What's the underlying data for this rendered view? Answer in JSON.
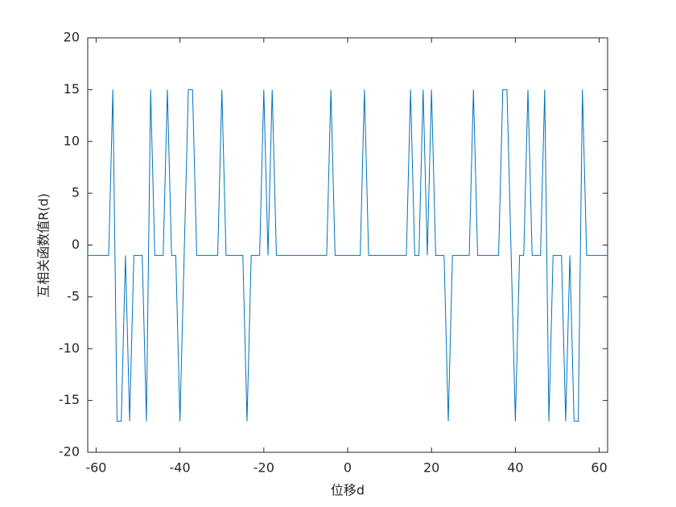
{
  "chart_data": {
    "type": "line",
    "x_label": "位移d",
    "y_label": "互相关函数值R(d)",
    "x": [
      -62,
      -61,
      -60,
      -59,
      -58,
      -57,
      -56,
      -55,
      -54,
      -53,
      -52,
      -51,
      -50,
      -49,
      -48,
      -47,
      -46,
      -45,
      -44,
      -43,
      -42,
      -41,
      -40,
      -39,
      -38,
      -37,
      -36,
      -35,
      -34,
      -33,
      -32,
      -31,
      -30,
      -29,
      -28,
      -27,
      -26,
      -25,
      -24,
      -23,
      -22,
      -21,
      -20,
      -19,
      -18,
      -17,
      -16,
      -15,
      -14,
      -13,
      -12,
      -11,
      -10,
      -9,
      -8,
      -7,
      -6,
      -5,
      -4,
      -3,
      -2,
      -1,
      0,
      1,
      2,
      3,
      4,
      5,
      6,
      7,
      8,
      9,
      10,
      11,
      12,
      13,
      14,
      15,
      16,
      17,
      18,
      19,
      20,
      21,
      22,
      23,
      24,
      25,
      26,
      27,
      28,
      29,
      30,
      31,
      32,
      33,
      34,
      35,
      36,
      37,
      38,
      39,
      40,
      41,
      42,
      43,
      44,
      45,
      46,
      47,
      48,
      49,
      50,
      51,
      52,
      53,
      54,
      55,
      56,
      57,
      58,
      59,
      60,
      61,
      62
    ],
    "series": [
      {
        "color": "#0072bd",
        "values": [
          -1,
          -1,
          -1,
          -1,
          -1,
          -1,
          15,
          -17,
          -17,
          -1,
          -17,
          -1,
          -1,
          -1,
          -17,
          15,
          -1,
          -1,
          -1,
          15,
          -1,
          -1,
          -17,
          -1,
          15,
          15,
          -1,
          -1,
          -1,
          -1,
          -1,
          -1,
          15,
          -1,
          -1,
          -1,
          -1,
          -1,
          -17,
          -1,
          -1,
          -1,
          15,
          -1,
          15,
          -1,
          -1,
          -1,
          -1,
          -1,
          -1,
          -1,
          -1,
          -1,
          -1,
          -1,
          -1,
          -1,
          15,
          -1,
          -1,
          -1,
          -1,
          -1,
          -1,
          -1,
          15,
          -1,
          -1,
          -1,
          -1,
          -1,
          -1,
          -1,
          -1,
          -1,
          -1,
          15,
          -1,
          -1,
          15,
          -1,
          15,
          -1,
          -1,
          -1,
          -17,
          -1,
          -1,
          -1,
          -1,
          -1,
          15,
          -1,
          -1,
          -1,
          -1,
          -1,
          -1,
          15,
          15,
          -1,
          -17,
          -1,
          -1,
          15,
          -1,
          -1,
          -1,
          15,
          -17,
          -1,
          -1,
          -1,
          -17,
          -1,
          -17,
          -17,
          15,
          -1,
          -1,
          -1,
          -1,
          -1,
          -1
        ]
      }
    ],
    "xlim": [
      -62,
      62
    ],
    "xticks": [
      -60,
      -40,
      -20,
      0,
      20,
      40,
      60
    ],
    "ylim": [
      -20,
      20
    ],
    "yticks": [
      -20,
      -15,
      -10,
      -5,
      0,
      5,
      10,
      15,
      20
    ]
  }
}
